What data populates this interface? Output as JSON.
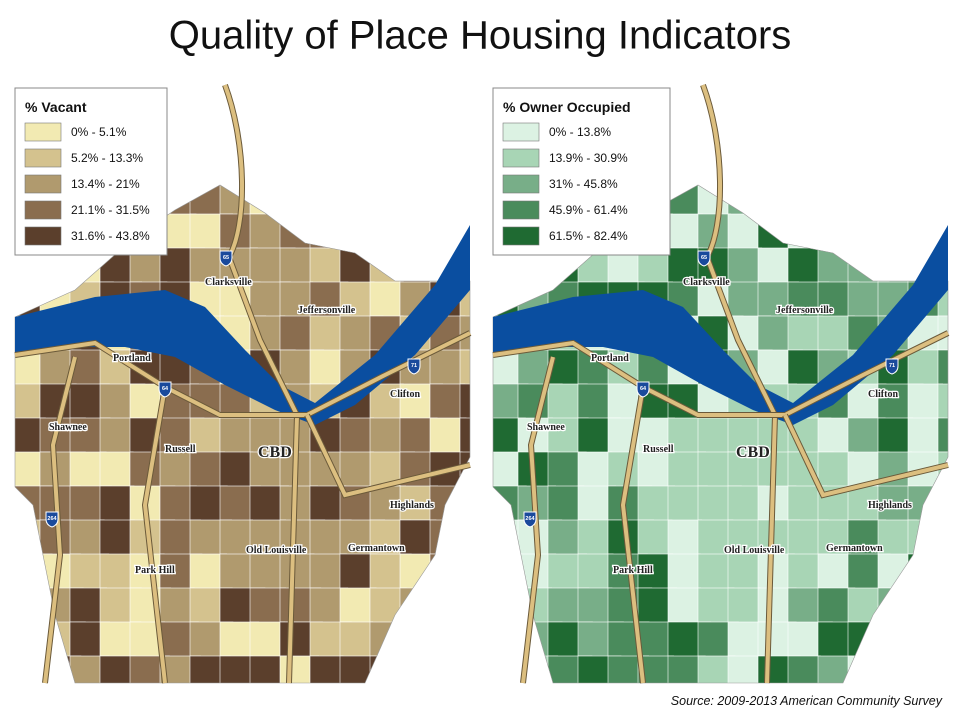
{
  "title": "Quality of Place Housing Indicators",
  "source": "Source:  2009-2013 American Community Survey",
  "maps": [
    {
      "legend_title": "% Vacant",
      "legend": [
        {
          "label": "0% - 5.1%",
          "color": "#f2eab2"
        },
        {
          "label": "5.2% - 13.3%",
          "color": "#d4c28e"
        },
        {
          "label": "13.4% - 21%",
          "color": "#b09a6e"
        },
        {
          "label": "21.1% - 31.5%",
          "color": "#8a6d4f"
        },
        {
          "label": "31.6% - 43.8%",
          "color": "#5b3f2c"
        }
      ]
    },
    {
      "legend_title": "% Owner Occupied",
      "legend": [
        {
          "label": "0% - 13.8%",
          "color": "#dcf2e3"
        },
        {
          "label": "13.9% - 30.9%",
          "color": "#a8d5b5"
        },
        {
          "label": "31% - 45.8%",
          "color": "#78ae88"
        },
        {
          "label": "45.9% - 61.4%",
          "color": "#4a8b5c"
        },
        {
          "label": "61.5% - 82.4%",
          "color": "#1f6a32"
        }
      ]
    }
  ],
  "places": [
    "Clarksville",
    "Jeffersonville",
    "Portland",
    "Clifton",
    "Shawnee",
    "Russell",
    "CBD",
    "Highlands",
    "Old Louisville",
    "Germantown",
    "Park Hill"
  ],
  "interstates": [
    "65",
    "64",
    "71",
    "264"
  ]
}
